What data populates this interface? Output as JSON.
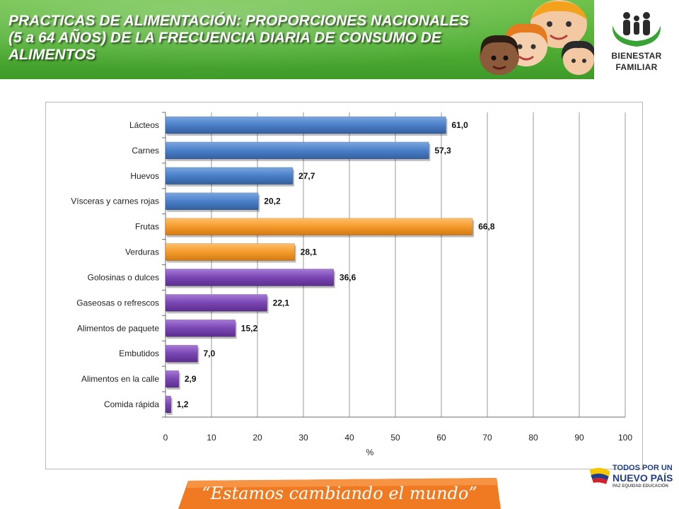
{
  "header": {
    "title": "PRACTICAS DE ALIMENTACIÓN: PROPORCIONES NACIONALES (5 a 64 AÑOS) DE LA FRECUENCIA DIARIA DE CONSUMO DE ALIMENTOS",
    "logo_line1": "BIENESTAR",
    "logo_line2": "FAMILIAR"
  },
  "footer": {
    "slogan": "“Estamos cambiando el mundo”",
    "brand_line1": "TODOS POR UN",
    "brand_line2": "NUEVO PAÍS",
    "brand_line3": "PAZ  EQUIDAD  EDUCACIÓN"
  },
  "colors": {
    "blue": "#4a7fc8",
    "orange": "#f49a2c",
    "purple": "#7a46b3",
    "header_green": "#4fae33",
    "footer_orange": "#f07a22"
  },
  "chart_data": {
    "type": "bar",
    "orientation": "horizontal",
    "categories": [
      "Lácteos",
      "Carnes",
      "Huevos",
      "Vísceras y carnes rojas",
      "Frutas",
      "Verduras",
      "Golosinas o dulces",
      "Gaseosas o refrescos",
      "Alimentos de paquete",
      "Embutidos",
      "Alimentos en la calle",
      "Comida rápida"
    ],
    "values": [
      61.0,
      57.3,
      27.7,
      20.2,
      66.8,
      28.1,
      36.6,
      22.1,
      15.2,
      7.0,
      2.9,
      1.2
    ],
    "value_labels": [
      "61,0",
      "57,3",
      "27,7",
      "20,2",
      "66,8",
      "28,1",
      "36,6",
      "22,1",
      "15,2",
      "7,0",
      "2,9",
      "1,2"
    ],
    "bar_colors": [
      "#4a7fc8",
      "#4a7fc8",
      "#4a7fc8",
      "#4a7fc8",
      "#f49a2c",
      "#f49a2c",
      "#7a46b3",
      "#7a46b3",
      "#7a46b3",
      "#7a46b3",
      "#7a46b3",
      "#7a46b3"
    ],
    "xlim": [
      0,
      100
    ],
    "xticks": [
      "0",
      "10",
      "20",
      "30",
      "40",
      "50",
      "60",
      "70",
      "80",
      "90",
      "100"
    ],
    "xlabel": "%",
    "grid": true
  }
}
